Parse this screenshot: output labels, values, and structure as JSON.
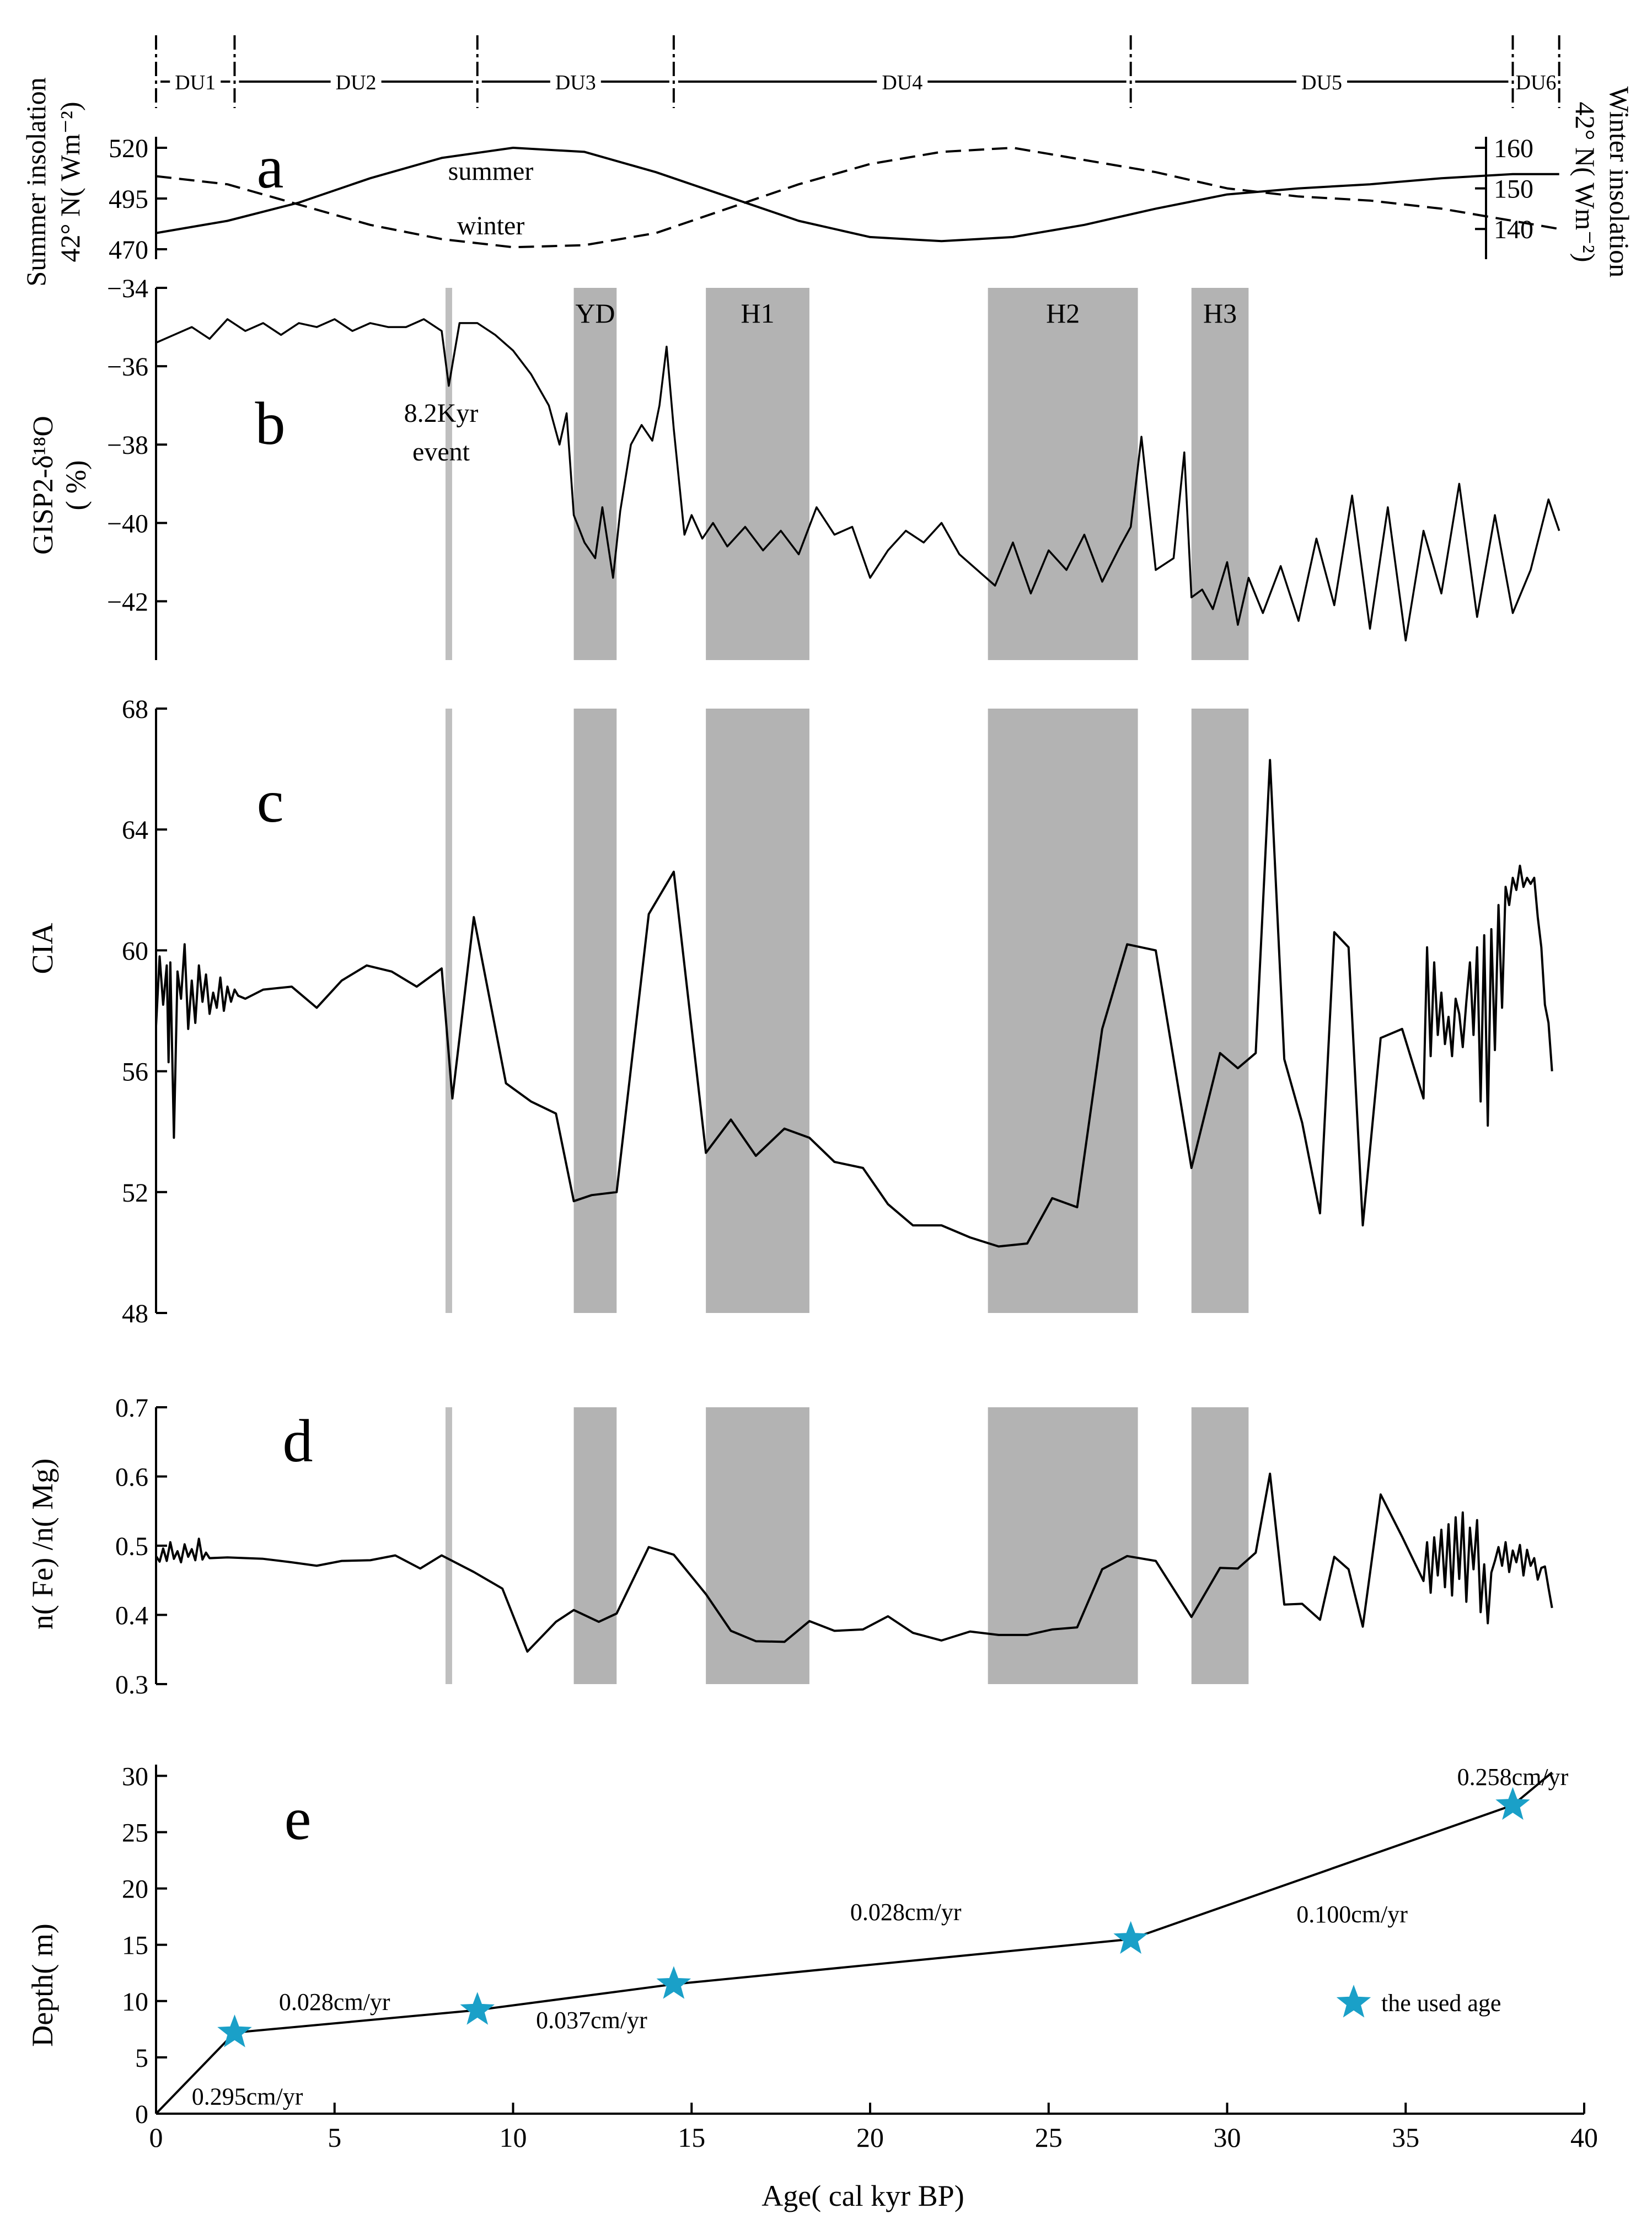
{
  "figure": {
    "x_axis": {
      "label": "Age( cal  kyr  BP)",
      "ticks": [
        0,
        5,
        10,
        15,
        20,
        25,
        30,
        35,
        40
      ],
      "range": [
        0,
        40
      ]
    },
    "depositional_units": {
      "labels": [
        "DU1",
        "DU2",
        "DU3",
        "DU4",
        "DU5",
        "DU6"
      ],
      "boundaries_kyr": [
        0,
        2.2,
        9.0,
        14.5,
        27.3,
        38.0,
        39.3
      ]
    },
    "event_bands": {
      "labels": [
        "YD",
        "H1",
        "H2",
        "H3"
      ],
      "ranges_kyr": [
        [
          11.7,
          12.9
        ],
        [
          15.4,
          18.3
        ],
        [
          23.3,
          27.5
        ],
        [
          29.0,
          30.6
        ]
      ],
      "event_8_2_kyr": 8.2,
      "event_8_2_label_1": "8.2Kyr",
      "event_8_2_label_2": "event"
    },
    "colors": {
      "band": "#b3b3b3",
      "band_light": "#bfbfbf",
      "line": "#000000",
      "star": "#1aa0c8"
    }
  },
  "chart_data": [
    {
      "panel": "a",
      "type": "line",
      "ylabel_left": [
        "Summer insolation",
        "42° N( Wm⁻²)"
      ],
      "ylabel_right": [
        "Winter insolation",
        "42° N( Wm⁻²)"
      ],
      "left_ticks": [
        470,
        495,
        520
      ],
      "right_ticks": [
        140,
        150,
        160
      ],
      "ylim_left": [
        470,
        520
      ],
      "ylim_right": [
        135,
        160
      ],
      "series": [
        {
          "name": "summer",
          "style": "solid",
          "x": [
            0,
            2,
            4,
            6,
            8,
            10,
            12,
            14,
            16,
            18,
            20,
            22,
            24,
            26,
            28,
            30,
            32,
            34,
            36,
            38,
            39.3
          ],
          "values": [
            478,
            484,
            493,
            505,
            515,
            520,
            518,
            508,
            496,
            484,
            476,
            474,
            476,
            482,
            490,
            497,
            500,
            502,
            505,
            507,
            507
          ]
        },
        {
          "name": "winter",
          "style": "dashed",
          "x": [
            0,
            2,
            4,
            6,
            8,
            10,
            12,
            14,
            16,
            18,
            20,
            22,
            24,
            26,
            28,
            30,
            32,
            34,
            36,
            38,
            39.3
          ],
          "values": [
            153,
            151,
            146,
            141,
            137.5,
            135.5,
            136,
            139,
            145,
            151,
            156,
            159,
            160,
            157,
            154,
            150,
            148,
            147,
            145,
            142,
            140
          ]
        }
      ]
    },
    {
      "panel": "b",
      "type": "line",
      "ylabel": [
        "GISP2-δ¹⁸O",
        "( %)"
      ],
      "ticks": [
        -42,
        -40,
        -38,
        -36,
        -34
      ],
      "ylim": [
        -43.5,
        -34
      ],
      "x": [
        0,
        0.5,
        1,
        1.5,
        2,
        2.5,
        3,
        3.5,
        4,
        4.5,
        5,
        5.5,
        6,
        6.5,
        7,
        7.5,
        8,
        8.2,
        8.5,
        9,
        9.5,
        10,
        10.5,
        11,
        11.3,
        11.5,
        11.7,
        12,
        12.3,
        12.5,
        12.8,
        13,
        13.3,
        13.6,
        13.9,
        14.1,
        14.3,
        14.5,
        14.8,
        15,
        15.3,
        15.6,
        16,
        16.5,
        17,
        17.5,
        18,
        18.5,
        19,
        19.5,
        20,
        20.5,
        21,
        21.5,
        22,
        22.5,
        23,
        23.5,
        24,
        24.5,
        25,
        25.5,
        26,
        26.5,
        27,
        27.3,
        27.6,
        28,
        28.5,
        28.8,
        29,
        29.3,
        29.6,
        30,
        30.3,
        30.6,
        31,
        31.5,
        32,
        32.5,
        33,
        33.5,
        34,
        34.5,
        35,
        35.5,
        36,
        36.5,
        37,
        37.5,
        38,
        38.5,
        39,
        39.3
      ],
      "values": [
        -35.4,
        -35.2,
        -35.0,
        -35.3,
        -34.8,
        -35.1,
        -34.9,
        -35.2,
        -34.9,
        -35.0,
        -34.8,
        -35.1,
        -34.9,
        -35.0,
        -35.0,
        -34.8,
        -35.1,
        -36.5,
        -34.9,
        -34.9,
        -35.2,
        -35.6,
        -36.2,
        -37.0,
        -38.0,
        -37.2,
        -39.8,
        -40.5,
        -40.9,
        -39.6,
        -41.4,
        -39.7,
        -38.0,
        -37.5,
        -37.9,
        -37.0,
        -35.5,
        -37.6,
        -40.3,
        -39.8,
        -40.4,
        -40.0,
        -40.6,
        -40.1,
        -40.7,
        -40.2,
        -40.8,
        -39.6,
        -40.3,
        -40.1,
        -41.4,
        -40.7,
        -40.2,
        -40.5,
        -40.0,
        -40.8,
        -41.2,
        -41.6,
        -40.5,
        -41.8,
        -40.7,
        -41.2,
        -40.3,
        -41.5,
        -40.6,
        -40.1,
        -37.8,
        -41.2,
        -40.9,
        -38.2,
        -41.9,
        -41.7,
        -42.2,
        -41.0,
        -42.6,
        -41.4,
        -42.3,
        -41.1,
        -42.5,
        -40.4,
        -42.1,
        -39.3,
        -42.7,
        -39.6,
        -43.0,
        -40.2,
        -41.8,
        -39.0,
        -42.4,
        -39.8,
        -42.3,
        -41.2,
        -39.4,
        -40.2
      ]
    },
    {
      "panel": "c",
      "type": "line",
      "ylabel": "CIA",
      "ticks": [
        48,
        52,
        56,
        60,
        64,
        68
      ],
      "ylim": [
        48,
        68
      ],
      "x": [
        0,
        0.1,
        0.2,
        0.3,
        0.35,
        0.4,
        0.5,
        0.6,
        0.7,
        0.8,
        0.9,
        1.0,
        1.1,
        1.2,
        1.3,
        1.4,
        1.5,
        1.6,
        1.7,
        1.8,
        1.9,
        2.0,
        2.1,
        2.2,
        2.3,
        2.5,
        3.0,
        3.8,
        4.5,
        5.2,
        5.9,
        6.6,
        7.3,
        8.0,
        8.3,
        8.9,
        9.8,
        10.5,
        11.2,
        11.7,
        12.2,
        12.9,
        13.8,
        14.5,
        15.4,
        16.1,
        16.8,
        17.6,
        18.3,
        19.0,
        19.8,
        20.5,
        21.2,
        22.0,
        22.8,
        23.6,
        24.4,
        25.1,
        25.8,
        26.5,
        27.2,
        28.0,
        29.0,
        29.8,
        30.3,
        30.8,
        31.2,
        31.6,
        32.1,
        32.6,
        33.0,
        33.4,
        33.8,
        34.3,
        34.9,
        35.5,
        35.6,
        35.7,
        35.8,
        35.9,
        36.0,
        36.1,
        36.2,
        36.3,
        36.4,
        36.5,
        36.6,
        36.7,
        36.8,
        36.9,
        37.0,
        37.1,
        37.2,
        37.3,
        37.4,
        37.5,
        37.6,
        37.7,
        37.8,
        37.9,
        38.0,
        38.1,
        38.2,
        38.3,
        38.4,
        38.5,
        38.6,
        38.7,
        38.8,
        38.9,
        39.0,
        39.1
      ],
      "values": [
        57.5,
        59.8,
        58.2,
        59.5,
        56.3,
        59.6,
        53.8,
        59.3,
        58.4,
        60.2,
        57.4,
        59.0,
        57.6,
        59.5,
        58.3,
        59.2,
        57.9,
        58.6,
        58.1,
        59.1,
        58.0,
        58.8,
        58.3,
        58.7,
        58.5,
        58.4,
        58.7,
        58.8,
        58.1,
        59.0,
        59.5,
        59.3,
        58.8,
        59.4,
        55.1,
        61.1,
        55.6,
        55.0,
        54.6,
        51.7,
        51.9,
        52.0,
        61.2,
        62.6,
        53.3,
        54.4,
        53.2,
        54.1,
        53.8,
        53.0,
        52.8,
        51.6,
        50.9,
        50.9,
        50.5,
        50.2,
        50.3,
        51.8,
        51.5,
        57.4,
        60.2,
        60.0,
        52.8,
        56.6,
        56.1,
        56.6,
        66.3,
        56.4,
        54.3,
        51.3,
        60.6,
        60.1,
        50.9,
        57.1,
        57.4,
        55.1,
        60.1,
        56.5,
        59.6,
        57.2,
        58.6,
        56.9,
        57.8,
        56.5,
        58.4,
        57.9,
        56.8,
        58.3,
        59.6,
        57.2,
        60.1,
        55.0,
        60.5,
        54.2,
        60.7,
        56.7,
        61.5,
        58.1,
        62.1,
        61.5,
        62.4,
        62.0,
        62.8,
        62.1,
        62.4,
        62.2,
        62.4,
        61.1,
        60.1,
        58.2,
        57.6,
        56.0
      ]
    },
    {
      "panel": "d",
      "type": "line",
      "ylabel": "n( Fe) /n( Mg)",
      "ticks": [
        0.3,
        0.4,
        0.5,
        0.6,
        0.7
      ],
      "ylim": [
        0.3,
        0.7
      ],
      "x": [
        0,
        0.1,
        0.2,
        0.3,
        0.4,
        0.5,
        0.6,
        0.7,
        0.8,
        0.9,
        1.0,
        1.1,
        1.2,
        1.3,
        1.4,
        1.5,
        2.0,
        3.0,
        3.8,
        4.5,
        5.2,
        6.0,
        6.7,
        7.4,
        8.0,
        8.9,
        9.7,
        10.4,
        11.2,
        11.7,
        12.4,
        12.9,
        13.8,
        14.5,
        15.4,
        16.1,
        16.8,
        17.6,
        18.3,
        19.0,
        19.8,
        20.5,
        21.2,
        22.0,
        22.8,
        23.6,
        24.4,
        25.1,
        25.8,
        26.5,
        27.2,
        28.0,
        29.0,
        29.8,
        30.3,
        30.8,
        31.2,
        31.6,
        32.1,
        32.6,
        33.0,
        33.4,
        33.8,
        34.3,
        34.9,
        35.5,
        35.6,
        35.7,
        35.8,
        35.9,
        36.0,
        36.1,
        36.2,
        36.3,
        36.4,
        36.5,
        36.6,
        36.7,
        36.8,
        36.9,
        37.0,
        37.1,
        37.2,
        37.3,
        37.4,
        37.5,
        37.6,
        37.7,
        37.8,
        37.9,
        38.0,
        38.1,
        38.2,
        38.3,
        38.4,
        38.5,
        38.6,
        38.7,
        38.8,
        38.9,
        39.0,
        39.1
      ],
      "values": [
        0.485,
        0.477,
        0.496,
        0.478,
        0.505,
        0.481,
        0.492,
        0.476,
        0.502,
        0.484,
        0.495,
        0.479,
        0.51,
        0.48,
        0.49,
        0.482,
        0.483,
        0.481,
        0.476,
        0.471,
        0.478,
        0.479,
        0.486,
        0.467,
        0.486,
        0.462,
        0.438,
        0.347,
        0.39,
        0.407,
        0.39,
        0.402,
        0.498,
        0.487,
        0.43,
        0.377,
        0.362,
        0.361,
        0.391,
        0.377,
        0.379,
        0.398,
        0.374,
        0.363,
        0.376,
        0.371,
        0.371,
        0.379,
        0.382,
        0.466,
        0.485,
        0.478,
        0.397,
        0.468,
        0.467,
        0.49,
        0.604,
        0.415,
        0.416,
        0.393,
        0.484,
        0.466,
        0.383,
        0.574,
        0.513,
        0.449,
        0.505,
        0.432,
        0.512,
        0.457,
        0.523,
        0.44,
        0.531,
        0.428,
        0.541,
        0.452,
        0.548,
        0.419,
        0.526,
        0.466,
        0.537,
        0.404,
        0.473,
        0.388,
        0.461,
        0.478,
        0.498,
        0.471,
        0.505,
        0.462,
        0.493,
        0.476,
        0.501,
        0.457,
        0.494,
        0.471,
        0.482,
        0.451,
        0.468,
        0.47,
        0.439,
        0.41
      ]
    },
    {
      "panel": "e",
      "type": "line",
      "ylabel": "Depth( m)",
      "ticks": [
        0,
        5,
        10,
        15,
        20,
        25,
        30
      ],
      "ylim": [
        0,
        31
      ],
      "x": [
        0,
        2.2,
        9.0,
        14.5,
        27.3,
        38.0,
        39.1
      ],
      "values": [
        0,
        7.2,
        9.2,
        11.5,
        15.5,
        27.4,
        30.3
      ],
      "stars": {
        "x": [
          2.2,
          9.0,
          14.5,
          27.3,
          38.0
        ],
        "values": [
          7.2,
          9.2,
          11.5,
          15.5,
          27.4
        ]
      },
      "rate_labels": [
        "0.295cm/yr",
        "0.028cm/yr",
        "0.037cm/yr",
        "0.028cm/yr",
        "0.100cm/yr",
        "0.258cm/yr"
      ],
      "legend_label": "the  used  age"
    }
  ],
  "panel_letters": [
    "a",
    "b",
    "c",
    "d",
    "e"
  ],
  "series_labels": {
    "summer": "summer",
    "winter": "winter"
  }
}
